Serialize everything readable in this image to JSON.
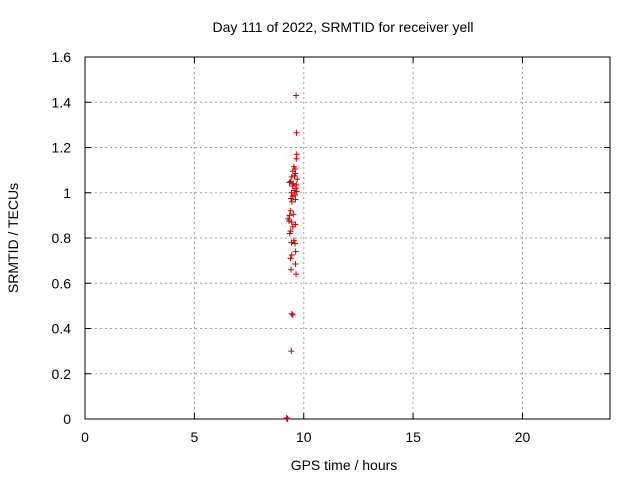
{
  "chart_data": {
    "type": "scatter",
    "title": "Day 111 of 2022, SRMTID for receiver yell",
    "xlabel": "GPS time / hours",
    "ylabel": "SRMTID / TECUs",
    "xlim": [
      0,
      24
    ],
    "ylim": [
      0,
      1.6
    ],
    "x_ticks": [
      0,
      5,
      10,
      15,
      20
    ],
    "x_tick_labels": [
      "0",
      "5",
      "10",
      "15",
      "20"
    ],
    "y_ticks": [
      0,
      0.2,
      0.4,
      0.6,
      0.8,
      1.0,
      1.2,
      1.4,
      1.6
    ],
    "y_tick_labels": [
      "0",
      "0.2",
      "0.4",
      "0.6",
      "0.8",
      "1",
      "1.2",
      "1.4",
      "1.6"
    ],
    "grid": true,
    "marker": "+",
    "color": "#cc0000",
    "series": [
      {
        "name": "SRMTID",
        "points": [
          [
            9.65,
            1.43
          ],
          [
            9.67,
            1.265
          ],
          [
            9.68,
            1.17
          ],
          [
            9.66,
            1.15
          ],
          [
            9.55,
            1.115
          ],
          [
            9.6,
            1.105
          ],
          [
            9.5,
            1.095
          ],
          [
            9.62,
            1.085
          ],
          [
            9.58,
            1.075
          ],
          [
            9.45,
            1.07
          ],
          [
            9.7,
            1.06
          ],
          [
            9.4,
            1.05
          ],
          [
            9.35,
            1.045
          ],
          [
            9.52,
            1.04
          ],
          [
            9.66,
            1.035
          ],
          [
            9.48,
            1.03
          ],
          [
            9.64,
            1.02
          ],
          [
            9.56,
            1.01
          ],
          [
            9.68,
            1.005
          ],
          [
            9.44,
            1.0
          ],
          [
            9.6,
            0.99
          ],
          [
            9.5,
            0.985
          ],
          [
            9.42,
            0.975
          ],
          [
            9.62,
            0.97
          ],
          [
            9.46,
            0.96
          ],
          [
            9.4,
            0.92
          ],
          [
            9.52,
            0.905
          ],
          [
            9.35,
            0.9
          ],
          [
            9.28,
            0.885
          ],
          [
            9.33,
            0.875
          ],
          [
            9.45,
            0.87
          ],
          [
            9.62,
            0.86
          ],
          [
            9.5,
            0.85
          ],
          [
            9.4,
            0.83
          ],
          [
            9.36,
            0.82
          ],
          [
            9.55,
            0.79
          ],
          [
            9.44,
            0.78
          ],
          [
            9.6,
            0.775
          ],
          [
            9.63,
            0.74
          ],
          [
            9.45,
            0.725
          ],
          [
            9.4,
            0.71
          ],
          [
            9.62,
            0.685
          ],
          [
            9.42,
            0.66
          ],
          [
            9.65,
            0.64
          ],
          [
            9.45,
            0.465
          ],
          [
            9.5,
            0.46
          ],
          [
            9.43,
            0.3
          ],
          [
            9.22,
            0.005
          ],
          [
            9.26,
            0.0
          ],
          [
            9.24,
            0.002
          ]
        ]
      }
    ]
  }
}
